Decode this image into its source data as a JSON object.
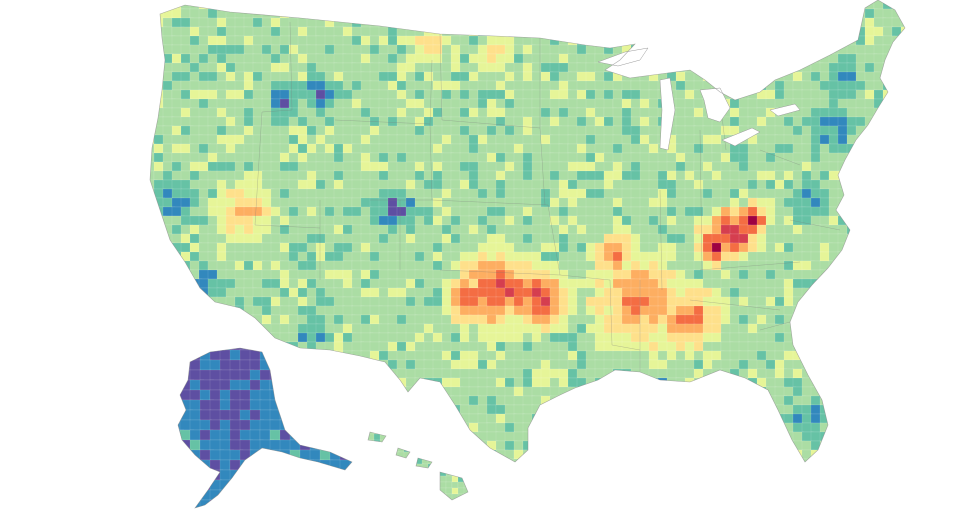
{
  "map": {
    "subject": "",
    "colors": {
      "scale": [
        "#5e4fa2",
        "#3288bd",
        "#66c2a5",
        "#abdda4",
        "#e6f598",
        "#fee08b",
        "#fdae61",
        "#f46d43",
        "#d53e4f",
        "#9e0142"
      ],
      "background": "#ffffff",
      "outline": "#8a8a8a",
      "water": "#ffffff"
    },
    "regions": [
      {
        "name": "contiguous-us",
        "base_level": 3
      },
      {
        "name": "alaska",
        "base_level": 1
      },
      {
        "name": "hawaii",
        "base_level": 3
      }
    ],
    "hotspots": [
      {
        "name": "central-appalachia",
        "level": 9
      },
      {
        "name": "oklahoma",
        "level": 8
      },
      {
        "name": "arkansas-tennessee",
        "level": 7
      },
      {
        "name": "nevada",
        "level": 6
      },
      {
        "name": "north-dakota",
        "level": 6
      }
    ],
    "coldspots": [
      {
        "name": "colorado-rockies",
        "level": 0
      },
      {
        "name": "california-coast",
        "level": 1
      },
      {
        "name": "northeast-corridor",
        "level": 1
      },
      {
        "name": "south-florida",
        "level": 1
      },
      {
        "name": "alaska-interior",
        "level": 0
      }
    ]
  }
}
